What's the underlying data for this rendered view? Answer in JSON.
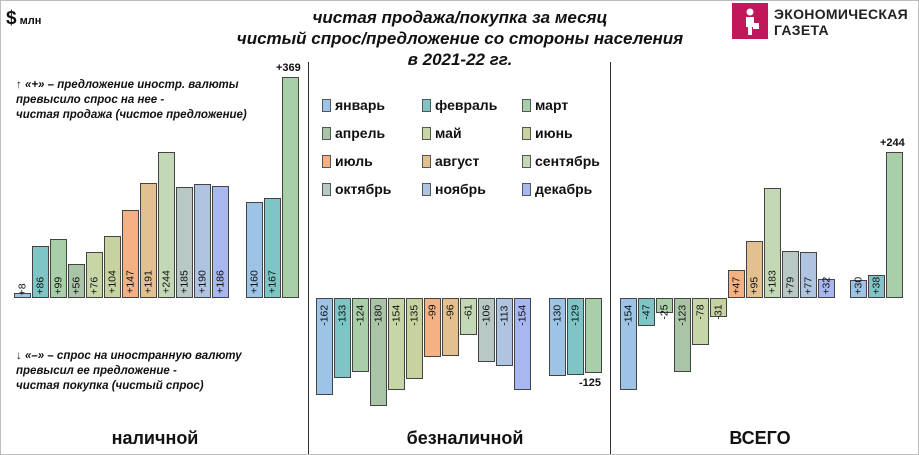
{
  "header": {
    "currency_symbol": "$",
    "currency_unit": "млн",
    "title_line1": "чистая продажа/покупка за месяц",
    "title_line2": "чистый спрос/предложение со стороны населения",
    "title_line3": "в 2021-22 гг.",
    "logo_line1": "ЭКОНОМИЧЕСКАЯ",
    "logo_line2": "ГАЗЕТА"
  },
  "notes": {
    "plus_line1": "↑ «+» – предложение иностр. валюты",
    "plus_line2": "превысило спрос на нее -",
    "plus_line3": "чистая продажа (чистое предложение)",
    "minus_line1": "↓ «–» – спрос на иностранную валюту",
    "minus_line2": "превысил ее предложение -",
    "minus_line3": "чистая покупка (чистый спрос)"
  },
  "colors": {
    "январь": "#9dc3e6",
    "февраль": "#7fc5c5",
    "март": "#a8cfa8",
    "апрель": "#a9c4a6",
    "май": "#c6d6a6",
    "июнь": "#c6d3a0",
    "июль": "#f4b183",
    "август": "#e2c08f",
    "сентябрь": "#c3d9b6",
    "октябрь": "#b8c8c4",
    "ноябрь": "#aec4e0",
    "декабрь": "#a9b7f0"
  },
  "legend": [
    "январь",
    "февраль",
    "март",
    "апрель",
    "май",
    "июнь",
    "июль",
    "август",
    "сентябрь",
    "октябрь",
    "ноябрь",
    "декабрь"
  ],
  "chart_data": [
    {
      "type": "bar",
      "name": "наличной",
      "label": "наличной",
      "unit": "$ млн",
      "series": [
        {
          "name": "2021",
          "categories": [
            "январь",
            "февраль",
            "март",
            "апрель",
            "май",
            "июнь",
            "июль",
            "август",
            "сентябрь",
            "октябрь",
            "ноябрь",
            "декабрь"
          ],
          "values": [
            8,
            86,
            99,
            56,
            76,
            104,
            147,
            191,
            244,
            185,
            190,
            186
          ],
          "labels": [
            "+8",
            "+86",
            "+99",
            "+56",
            "+76",
            "+104",
            "+147",
            "+191",
            "+244",
            "+185",
            "+190",
            "+186"
          ]
        },
        {
          "name": "2022",
          "categories": [
            "январь",
            "февраль",
            "март"
          ],
          "values": [
            160,
            167,
            369
          ],
          "labels": [
            "+160",
            "+167",
            "+369"
          ]
        }
      ]
    },
    {
      "type": "bar",
      "name": "безналичной",
      "label": "безналичной",
      "unit": "$ млн",
      "series": [
        {
          "name": "2021",
          "categories": [
            "январь",
            "февраль",
            "март",
            "апрель",
            "май",
            "июнь",
            "июль",
            "август",
            "сентябрь",
            "октябрь",
            "ноябрь",
            "декабрь"
          ],
          "values": [
            -162,
            -133,
            -124,
            -180,
            -154,
            -135,
            -99,
            -96,
            -61,
            -106,
            -113,
            -154
          ],
          "labels": [
            "-162",
            "-133",
            "-124",
            "-180",
            "-154",
            "-135",
            "-99",
            "-96",
            "-61",
            "-106",
            "-113",
            "-154"
          ]
        },
        {
          "name": "2022",
          "categories": [
            "январь",
            "февраль",
            "март"
          ],
          "values": [
            -130,
            -129,
            -125
          ],
          "labels": [
            "-130",
            "-129",
            "-125"
          ]
        }
      ]
    },
    {
      "type": "bar",
      "name": "ВСЕГО",
      "label": "ВСЕГО",
      "unit": "$ млн",
      "series": [
        {
          "name": "2021",
          "categories": [
            "январь",
            "февраль",
            "март",
            "апрель",
            "май",
            "июнь",
            "июль",
            "август",
            "сентябрь",
            "октябрь",
            "ноябрь",
            "декабрь"
          ],
          "values": [
            -154,
            -47,
            -25,
            -123,
            -78,
            -31,
            47,
            95,
            183,
            79,
            77,
            32
          ],
          "labels": [
            "-154",
            "-47",
            "-25",
            "-123",
            "-78",
            "-31",
            "+47",
            "+95",
            "+183",
            "+79",
            "+77",
            "+32"
          ]
        },
        {
          "name": "2022",
          "categories": [
            "январь",
            "февраль",
            "март"
          ],
          "values": [
            30,
            38,
            244
          ],
          "labels": [
            "+30",
            "+38",
            "+244"
          ]
        }
      ]
    }
  ]
}
